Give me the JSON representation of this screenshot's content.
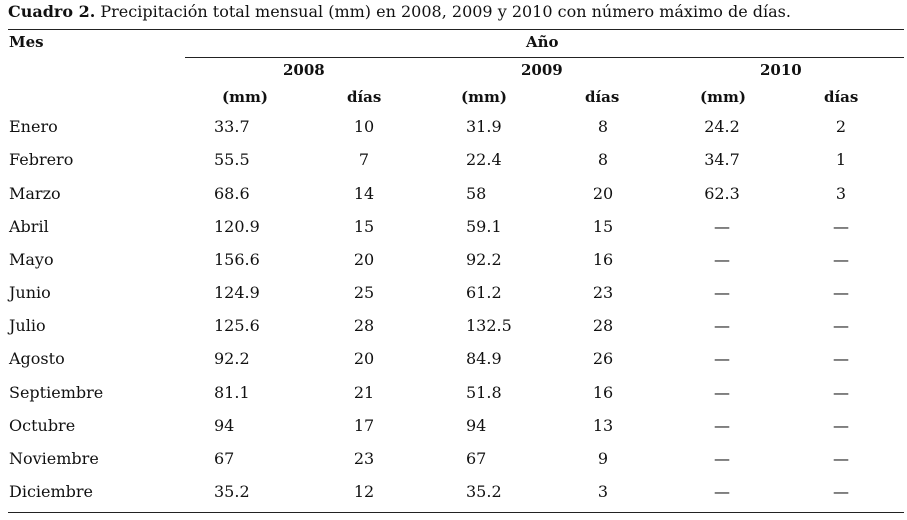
{
  "caption": {
    "label": "Cuadro 2.",
    "text": "Precipitación total mensual (mm) en 2008, 2009 y 2010 con número máximo de días."
  },
  "header": {
    "month_label": "Mes",
    "year_label": "Año",
    "years": [
      "2008",
      "2009",
      "2010"
    ],
    "mm_label": "(mm)",
    "days_label": "días"
  },
  "rows": [
    {
      "month": "Enero",
      "mm2008": "33.7",
      "d2008": "10",
      "mm2009": "31.9",
      "d2009": "8",
      "mm2010": "24.2",
      "d2010": "2"
    },
    {
      "month": "Febrero",
      "mm2008": "55.5",
      "d2008": "7",
      "mm2009": "22.4",
      "d2009": "8",
      "mm2010": "34.7",
      "d2010": "1"
    },
    {
      "month": "Marzo",
      "mm2008": "68.6",
      "d2008": "14",
      "mm2009": "58",
      "d2009": "20",
      "mm2010": "62.3",
      "d2010": "3"
    },
    {
      "month": "Abril",
      "mm2008": "120.9",
      "d2008": "15",
      "mm2009": "59.1",
      "d2009": "15",
      "mm2010": "—",
      "d2010": "—"
    },
    {
      "month": "Mayo",
      "mm2008": "156.6",
      "d2008": "20",
      "mm2009": "92.2",
      "d2009": "16",
      "mm2010": "—",
      "d2010": "—"
    },
    {
      "month": "Junio",
      "mm2008": "124.9",
      "d2008": "25",
      "mm2009": "61.2",
      "d2009": "23",
      "mm2010": "—",
      "d2010": "—"
    },
    {
      "month": "Julio",
      "mm2008": "125.6",
      "d2008": "28",
      "mm2009": "132.5",
      "d2009": "28",
      "mm2010": "—",
      "d2010": "—"
    },
    {
      "month": "Agosto",
      "mm2008": "92.2",
      "d2008": "20",
      "mm2009": "84.9",
      "d2009": "26",
      "mm2010": "—",
      "d2010": "—"
    },
    {
      "month": "Septiembre",
      "mm2008": "81.1",
      "d2008": "21",
      "mm2009": "51.8",
      "d2009": "16",
      "mm2010": "—",
      "d2010": "—"
    },
    {
      "month": "Octubre",
      "mm2008": "94",
      "d2008": "17",
      "mm2009": "94",
      "d2009": "13",
      "mm2010": "—",
      "d2010": "—"
    },
    {
      "month": "Noviembre",
      "mm2008": "67",
      "d2008": "23",
      "mm2009": "67",
      "d2009": "9",
      "mm2010": "—",
      "d2010": "—"
    },
    {
      "month": "Diciembre",
      "mm2008": "35.2",
      "d2008": "12",
      "mm2009": "35.2",
      "d2009": "3",
      "mm2010": "—",
      "d2010": "—"
    }
  ]
}
